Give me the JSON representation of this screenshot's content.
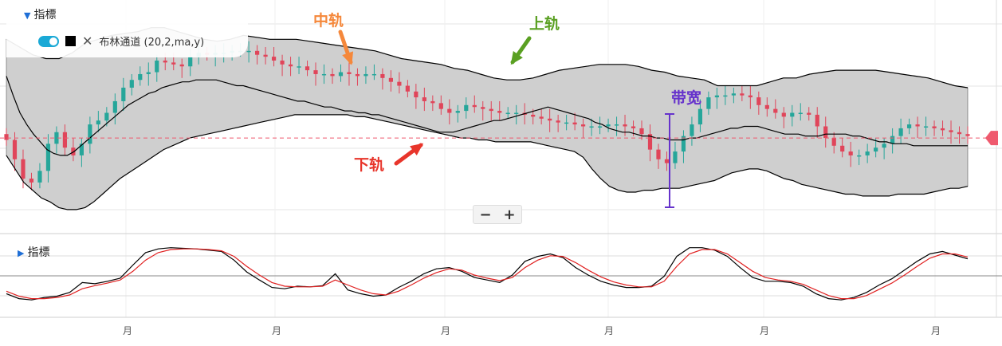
{
  "indicator_panel": {
    "title": "指標",
    "indicator_label": "布林通道 (20,2,ma,y)",
    "toggle_state": "on",
    "line_color": "#000000"
  },
  "sub_panel": {
    "title": "指標"
  },
  "zoom": {
    "minus": "−",
    "plus": "+"
  },
  "annotations": {
    "middle": {
      "text": "中轨",
      "color": "#f5883b"
    },
    "upper": {
      "text": "上轨",
      "color": "#5aa022"
    },
    "lower": {
      "text": "下轨",
      "color": "#e8352b"
    },
    "bandwidth": {
      "text": "带宽",
      "color": "#6633cc"
    }
  },
  "x_axis_labels": [
    "月",
    "月",
    "月",
    "月",
    "月",
    "月"
  ],
  "colors": {
    "up": "#26a69a",
    "down": "#e0455a",
    "band_fill": "#cfcfcf",
    "k_line": "#000000",
    "d_line": "#e02020",
    "current_price": "#ef5a6e"
  },
  "chart_data": {
    "type": "candlestick",
    "series": [
      {
        "name": "price",
        "values": [
          248,
          238,
          228,
          226,
          232,
          246,
          252,
          244,
          240,
          246,
          256,
          258,
          262,
          268,
          275,
          279,
          282,
          283,
          289,
          288,
          287,
          286,
          291,
          293,
          292,
          293,
          293,
          294,
          294,
          294,
          292,
          291,
          289,
          287,
          286,
          286,
          284,
          282,
          282,
          281,
          283,
          282,
          281,
          282,
          282,
          280,
          278,
          276,
          273,
          270,
          268,
          267,
          264,
          262,
          263,
          266,
          265,
          264,
          263,
          262,
          262,
          262,
          261,
          260,
          259,
          258,
          257,
          257,
          256,
          255,
          255,
          255,
          256,
          256,
          255,
          254,
          251,
          243,
          238,
          236,
          242,
          250,
          256,
          264,
          270,
          271,
          271,
          272,
          271,
          270,
          266,
          264,
          262,
          260,
          262,
          262,
          261,
          255,
          249,
          245,
          242,
          240,
          240,
          242,
          244,
          246,
          250,
          254,
          256,
          255,
          255,
          254,
          253,
          252,
          251,
          250
        ]
      },
      {
        "name": "upper",
        "values": [
          300,
          296,
          292,
          290,
          290,
          293,
          298,
          300,
          302,
          303,
          304,
          306,
          306,
          304,
          302,
          300,
          299,
          300,
          302,
          301,
          300,
          300,
          300,
          299,
          298,
          297,
          296,
          295,
          294,
          292,
          290,
          289,
          288,
          287,
          285,
          284,
          282,
          280,
          279,
          279,
          280,
          282,
          284,
          285,
          286,
          287,
          287,
          287,
          286,
          284,
          283,
          281,
          280,
          279,
          276,
          276,
          276,
          276,
          278,
          280,
          280,
          282,
          283,
          284,
          284,
          284,
          284,
          283,
          282,
          281,
          280,
          278,
          276,
          275
        ]
      },
      {
        "name": "middle",
        "values": [
          281,
          271,
          262,
          256,
          251,
          247,
          243,
          241,
          240,
          240,
          242,
          245,
          248,
          251,
          254,
          257,
          260,
          263,
          266,
          268,
          270,
          272,
          273,
          275,
          276,
          277,
          278,
          278,
          279,
          279,
          279,
          279,
          278,
          277,
          276,
          276,
          275,
          274,
          273,
          272,
          271,
          270,
          269,
          268,
          268,
          267,
          266,
          265,
          265,
          264,
          263,
          263,
          262,
          262,
          261,
          261,
          260,
          259,
          258,
          257,
          256,
          255,
          254,
          253,
          252,
          252,
          252,
          253,
          254,
          255,
          256,
          257,
          258,
          258,
          259,
          260,
          261,
          262,
          263,
          264,
          265,
          264,
          263,
          262,
          261,
          260,
          259,
          257,
          256,
          254,
          253,
          252,
          252,
          251,
          250,
          250,
          249,
          249,
          248,
          248,
          248,
          249,
          249,
          250,
          251,
          252,
          253,
          254,
          254,
          255,
          255,
          255,
          254,
          253,
          252,
          251,
          251,
          251,
          250,
          250,
          250,
          251,
          251,
          251,
          251,
          250,
          250,
          249,
          248,
          247,
          247,
          246,
          246,
          246,
          245,
          245,
          245,
          245,
          245,
          245,
          245,
          245,
          245
        ]
      },
      {
        "name": "lower",
        "values": [
          240,
          233,
          226,
          222,
          218,
          216,
          213,
          212,
          212,
          213,
          216,
          220,
          224,
          228,
          231,
          234,
          237,
          240,
          243,
          245,
          247,
          249,
          250,
          251,
          252,
          253,
          254,
          255,
          256,
          257,
          258,
          259,
          260,
          261,
          261,
          261,
          261,
          261,
          261,
          261,
          260,
          260,
          259,
          258,
          257,
          256,
          255,
          254,
          253,
          252,
          251,
          250,
          249,
          249,
          248,
          248,
          247,
          247,
          247,
          247,
          247,
          246,
          245,
          244,
          243,
          242,
          239,
          233,
          228,
          224,
          222,
          221,
          221,
          222,
          222,
          223,
          223,
          223,
          224,
          225,
          226,
          227,
          229,
          231,
          232,
          233,
          233,
          232,
          230,
          228,
          227,
          225,
          224,
          223,
          222,
          221,
          220,
          220,
          219,
          219,
          219,
          219,
          220,
          220,
          220,
          220,
          221,
          222,
          223,
          223,
          224
        ]
      }
    ],
    "current_price_level": 249,
    "oscillator": {
      "series": [
        {
          "name": "K",
          "values": [
            20,
            12,
            10,
            14,
            16,
            22,
            38,
            36,
            40,
            45,
            66,
            86,
            92,
            94,
            93,
            92,
            90,
            88,
            74,
            55,
            42,
            30,
            28,
            32,
            31,
            33,
            52,
            26,
            20,
            16,
            18,
            30,
            40,
            52,
            60,
            62,
            56,
            46,
            42,
            38,
            50,
            72,
            80,
            84,
            78,
            62,
            50,
            40,
            34,
            30,
            30,
            32,
            48,
            80,
            94,
            94,
            90,
            80,
            62,
            46,
            40,
            40,
            38,
            32,
            20,
            12,
            10,
            14,
            22,
            34,
            44,
            58,
            72,
            84,
            88,
            82,
            76
          ]
        },
        {
          "name": "D",
          "values": [
            24,
            16,
            12,
            12,
            14,
            18,
            28,
            33,
            37,
            42,
            56,
            74,
            86,
            91,
            92,
            92,
            91,
            89,
            80,
            64,
            50,
            38,
            32,
            31,
            31,
            32,
            42,
            34,
            26,
            20,
            18,
            24,
            34,
            45,
            54,
            60,
            58,
            50,
            45,
            41,
            46,
            62,
            74,
            81,
            80,
            70,
            58,
            47,
            39,
            34,
            31,
            31,
            40,
            64,
            84,
            91,
            91,
            84,
            70,
            56,
            46,
            42,
            40,
            35,
            26,
            17,
            12,
            12,
            17,
            27,
            37,
            50,
            64,
            77,
            84,
            84,
            79
          ]
        }
      ]
    }
  }
}
